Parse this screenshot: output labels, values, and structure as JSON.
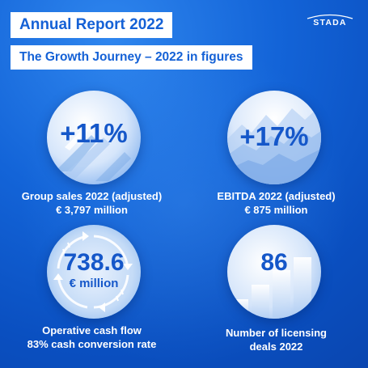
{
  "header": {
    "title": "Annual Report 2022",
    "subtitle": "The Growth Journey – 2022 in figures",
    "logo": "STADA"
  },
  "figures": [
    {
      "value": "+11%",
      "line1": "Group sales 2022 (adjusted)",
      "line2": "€ 3,797 million"
    },
    {
      "value": "+17%",
      "line1": "EBITDA 2022 (adjusted)",
      "line2": "€ 875 million"
    },
    {
      "value": "738.6",
      "unit": "€ million",
      "line1": "Operative cash flow",
      "line2": "83% cash conversion rate"
    },
    {
      "value": "86",
      "line1": "Number of licensing",
      "line2": "deals 2022"
    }
  ],
  "colors": {
    "brand_blue": "#1461d6",
    "background": "#1364d8"
  }
}
